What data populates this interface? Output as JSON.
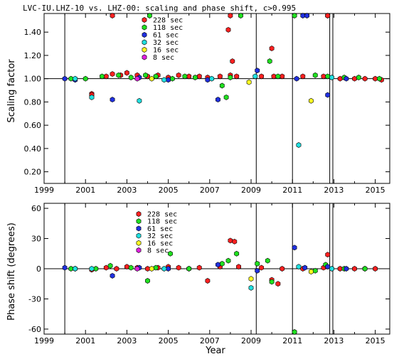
{
  "chart_data": [
    {
      "type": "scatter",
      "title": "LVC-IU.LHZ-10 vs. LHZ-00: scaling and phase shift, c>0.995",
      "xlabel": "",
      "ylabel": "Scaling factor",
      "xlim": [
        1999,
        2015.7
      ],
      "ylim": [
        0.1,
        1.56
      ],
      "xticks": [
        1999,
        2001,
        2003,
        2005,
        2007,
        2009,
        2011,
        2013,
        2015
      ],
      "yticks": [
        0.2,
        0.4,
        0.6,
        0.8,
        1.0,
        1.2,
        1.4
      ],
      "ytick_labels": [
        "0.20",
        "0.40",
        "0.60",
        "0.80",
        "1.00",
        "1.20",
        "1.40"
      ],
      "reference_line": 1.0,
      "vertical_lines": [
        2000.0,
        2009.25,
        2011.0,
        2012.8,
        2012.95
      ],
      "legend": [
        "228 sec",
        "118 sec",
        "61 sec",
        "32 sec",
        "16 sec",
        "8 sec"
      ],
      "legend_position": "top-left",
      "series": [
        {
          "name": "228 sec",
          "color": "#ff2020",
          "x": [
            2001.3,
            2001.3,
            2002.0,
            2002.3,
            2002.7,
            2003.0,
            2003.5,
            2004.0,
            2004.5,
            2005.0,
            2005.5,
            2006.0,
            2006.5,
            2006.9,
            2007.5,
            2007.9,
            2008.0,
            2008.1,
            2008.3,
            2009.5,
            2010.0,
            2010.1,
            2010.5,
            2011.5,
            2012.5,
            2012.7,
            2013.3,
            2014.0,
            2014.5,
            2015.0,
            2015.3,
            2002.3,
            2008.0,
            2012.7
          ],
          "y": [
            0.87,
            0.86,
            1.02,
            1.04,
            1.03,
            1.05,
            1.03,
            1.02,
            1.03,
            1.01,
            1.03,
            1.02,
            1.02,
            1.01,
            1.02,
            1.42,
            1.03,
            1.15,
            1.02,
            1.02,
            1.26,
            1.02,
            1.02,
            1.02,
            1.02,
            1.55,
            1.0,
            1.0,
            1.0,
            1.0,
            0.99,
            1.55,
            1.55,
            1.55
          ]
        },
        {
          "name": "118 sec",
          "color": "#20e020",
          "x": [
            2000.3,
            2001.0,
            2001.8,
            2002.6,
            2003.2,
            2003.9,
            2004.4,
            2005.2,
            2005.8,
            2006.3,
            2007.6,
            2007.8,
            2008.0,
            2009.9,
            2010.3,
            2011.1,
            2012.1,
            2012.7,
            2013.5,
            2014.2,
            2015.2,
            2004.1,
            2008.5
          ],
          "y": [
            1.0,
            1.0,
            1.02,
            1.03,
            1.01,
            1.03,
            1.02,
            1.0,
            1.02,
            1.01,
            0.94,
            0.84,
            1.01,
            1.15,
            1.02,
            1.55,
            1.03,
            1.02,
            1.01,
            1.01,
            1.0,
            1.55,
            1.55
          ]
        },
        {
          "name": "61 sec",
          "color": "#2030e0",
          "x": [
            2000.0,
            2000.5,
            2002.3,
            2003.6,
            2005.0,
            2006.9,
            2007.4,
            2009.3,
            2011.2,
            2011.5,
            2011.7,
            2012.7,
            2013.6
          ],
          "y": [
            1.0,
            0.99,
            0.82,
            1.01,
            0.99,
            0.99,
            0.82,
            1.07,
            1.0,
            1.55,
            1.55,
            0.86,
            1.0
          ]
        },
        {
          "name": "32 sec",
          "color": "#20e0e0",
          "x": [
            2000.5,
            2001.3,
            2003.6,
            2004.8,
            2007.1,
            2009.2,
            2011.3,
            2012.9
          ],
          "y": [
            1.0,
            0.84,
            0.81,
            0.99,
            1.0,
            1.02,
            0.43,
            1.01
          ]
        },
        {
          "name": "16 sec",
          "color": "#ffff20",
          "x": [
            2008.9,
            2011.9,
            2004.2
          ],
          "y": [
            0.97,
            0.81,
            1.0
          ]
        },
        {
          "name": "8 sec",
          "color": "#e020e0",
          "x": [
            2003.5
          ],
          "y": [
            1.0
          ]
        }
      ]
    },
    {
      "type": "scatter",
      "title": "",
      "xlabel": "Year",
      "ylabel": "Phase shift (degrees)",
      "xlim": [
        1999,
        2015.7
      ],
      "ylim": [
        -65,
        65
      ],
      "xticks": [
        1999,
        2001,
        2003,
        2005,
        2007,
        2009,
        2011,
        2013,
        2015
      ],
      "yticks": [
        -60,
        -30,
        0,
        30,
        60
      ],
      "ytick_labels": [
        "-60",
        "-30",
        "0",
        "30",
        "60"
      ],
      "reference_line": 0,
      "vertical_lines": [
        2000.0,
        2009.25,
        2011.0,
        2012.8,
        2012.95
      ],
      "legend": [
        "228 sec",
        "118 sec",
        "61 sec",
        "32 sec",
        "16 sec",
        "8 sec"
      ],
      "legend_position": "top-left",
      "series": [
        {
          "name": "228 sec",
          "color": "#ff2020",
          "x": [
            2001.3,
            2002.0,
            2002.5,
            2003.0,
            2003.5,
            2004.0,
            2004.5,
            2005.0,
            2005.5,
            2006.0,
            2006.5,
            2006.9,
            2007.5,
            2008.0,
            2008.2,
            2008.4,
            2009.5,
            2010.0,
            2010.3,
            2010.5,
            2011.5,
            2012.5,
            2012.7,
            2013.3,
            2014.0,
            2014.5,
            2015.0
          ],
          "y": [
            -1,
            1,
            0,
            2,
            1,
            0,
            1,
            2,
            1,
            0,
            1,
            -12,
            2,
            28,
            27,
            2,
            1,
            -11,
            -15,
            0,
            0,
            1,
            14,
            0,
            0,
            0,
            0
          ]
        },
        {
          "name": "118 sec",
          "color": "#20e020",
          "x": [
            2000.3,
            2001.5,
            2002.2,
            2003.2,
            2004.0,
            2004.4,
            2005.1,
            2006.0,
            2007.6,
            2007.9,
            2008.3,
            2009.3,
            2009.8,
            2010.0,
            2011.1,
            2012.1,
            2012.6,
            2013.5,
            2014.5
          ],
          "y": [
            0,
            0,
            3,
            1,
            -12,
            1,
            15,
            0,
            5,
            8,
            15,
            5,
            8,
            -13,
            -64,
            -2,
            4,
            0,
            0
          ]
        },
        {
          "name": "61 sec",
          "color": "#2030e0",
          "x": [
            2000.0,
            2000.5,
            2002.3,
            2003.6,
            2005.0,
            2007.4,
            2009.3,
            2011.1,
            2011.6,
            2012.7,
            2013.6
          ],
          "y": [
            1,
            0,
            -7,
            1,
            0,
            4,
            -2,
            21,
            1,
            2,
            0
          ]
        },
        {
          "name": "32 sec",
          "color": "#20e0e0",
          "x": [
            2000.5,
            2001.3,
            2004.8,
            2009.0,
            2011.3,
            2012.9
          ],
          "y": [
            0,
            0,
            0,
            -19,
            2,
            0
          ]
        },
        {
          "name": "16 sec",
          "color": "#ffff20",
          "x": [
            2009.0,
            2011.9,
            2004.2
          ],
          "y": [
            -10,
            -3,
            0
          ]
        },
        {
          "name": "8 sec",
          "color": "#e020e0",
          "x": [
            2003.5
          ],
          "y": [
            0
          ]
        }
      ]
    }
  ]
}
